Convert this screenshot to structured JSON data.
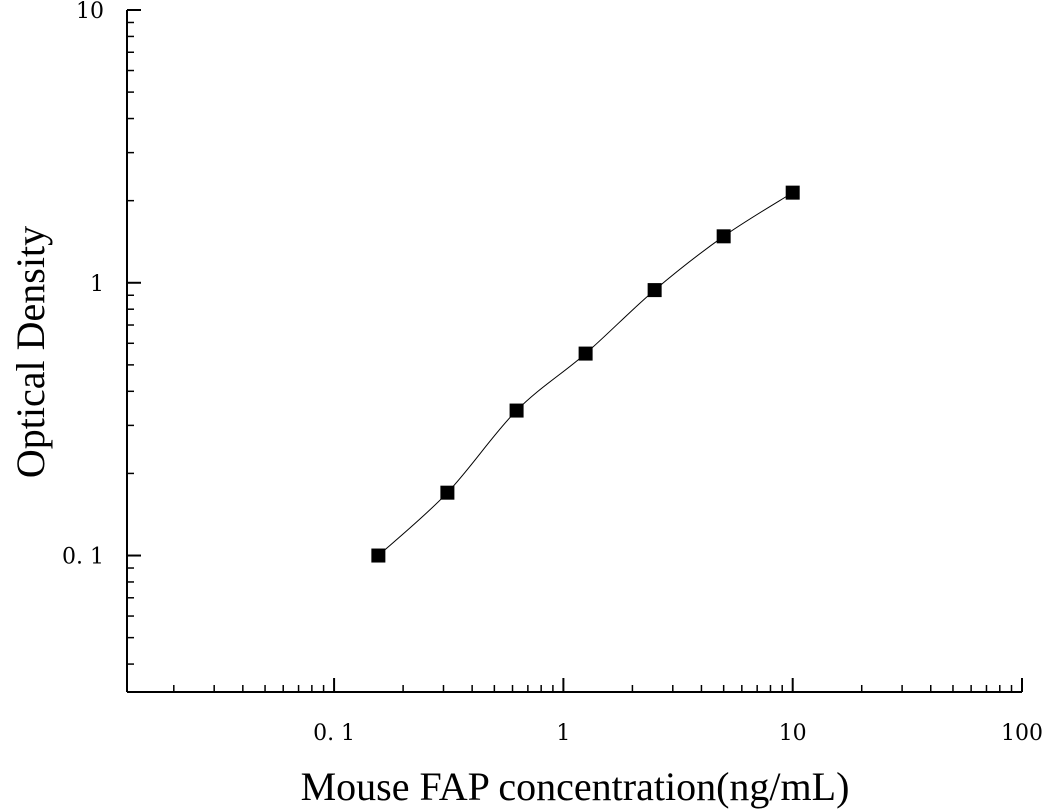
{
  "chart_data": {
    "type": "scatter",
    "title": "",
    "xlabel": "Mouse FAP concentration(ng/mL)",
    "ylabel": "Optical Density",
    "x_scale": "log",
    "y_scale": "log",
    "xlim": [
      0.0125,
      100
    ],
    "ylim": [
      0.0316,
      10
    ],
    "x_ticks": [
      {
        "value": 0.1,
        "label": "0. 1"
      },
      {
        "value": 1,
        "label": "1"
      },
      {
        "value": 10,
        "label": "10"
      },
      {
        "value": 100,
        "label": "100"
      }
    ],
    "y_ticks": [
      {
        "value": 0.1,
        "label": "0. 1"
      },
      {
        "value": 1,
        "label": "1"
      },
      {
        "value": 10,
        "label": "10"
      }
    ],
    "grid": false,
    "series": [
      {
        "marker": "square",
        "fit_line": true,
        "x": [
          0.156,
          0.312,
          0.625,
          1.25,
          2.5,
          5,
          10
        ],
        "y": [
          0.1,
          0.17,
          0.34,
          0.55,
          0.94,
          1.48,
          2.14
        ]
      }
    ]
  }
}
